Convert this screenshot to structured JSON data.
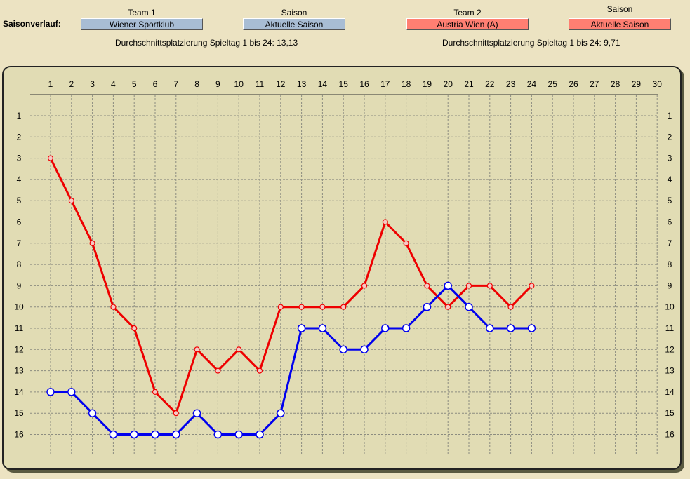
{
  "header": {
    "main_label": "Saisonverlauf:",
    "team1_label": "Team 1",
    "team1_value": "Wiener Sportklub",
    "season1_label": "Saison",
    "season1_value": "Aktuelle Saison",
    "team2_label": "Team 2",
    "team2_value": "Austria Wien (A)",
    "season2_label": "Saison",
    "season2_value": "Aktuelle Saison",
    "avg1": "Durchschnittsplatzierung Spieltag 1 bis 24: 13,13",
    "avg2": "Durchschnittsplatzierung Spieltag 1 bis 24:  9,71"
  },
  "colors": {
    "team1": "#0000EE",
    "team2": "#EE0000",
    "team1_button": "#A8BDD4",
    "team2_button": "#FF7F72"
  },
  "chart_data": {
    "type": "line",
    "title": "",
    "xlabel": "",
    "ylabel": "",
    "x_range": [
      1,
      30
    ],
    "y_range": [
      1,
      16
    ],
    "y_inverted": true,
    "grid": true,
    "x_ticks": [
      1,
      2,
      3,
      4,
      5,
      6,
      7,
      8,
      9,
      10,
      11,
      12,
      13,
      14,
      15,
      16,
      17,
      18,
      19,
      20,
      21,
      22,
      23,
      24,
      25,
      26,
      27,
      28,
      29,
      30
    ],
    "y_ticks": [
      1,
      2,
      3,
      4,
      5,
      6,
      7,
      8,
      9,
      10,
      11,
      12,
      13,
      14,
      15,
      16
    ],
    "series": [
      {
        "name": "Wiener Sportklub",
        "color": "#0000EE",
        "marker": "hollow-circle",
        "x": [
          1,
          2,
          3,
          4,
          5,
          6,
          7,
          8,
          9,
          10,
          11,
          12,
          13,
          14,
          15,
          16,
          17,
          18,
          19,
          20,
          21,
          22,
          23,
          24
        ],
        "values": [
          14,
          14,
          15,
          16,
          16,
          16,
          16,
          15,
          16,
          16,
          16,
          15,
          11,
          11,
          12,
          12,
          11,
          11,
          10,
          9,
          10,
          11,
          11,
          11
        ]
      },
      {
        "name": "Austria Wien (A)",
        "color": "#EE0000",
        "marker": "small-circle",
        "x": [
          1,
          2,
          3,
          4,
          5,
          6,
          7,
          8,
          9,
          10,
          11,
          12,
          13,
          14,
          15,
          16,
          17,
          18,
          19,
          20,
          21,
          22,
          23,
          24
        ],
        "values": [
          3,
          5,
          7,
          10,
          11,
          14,
          15,
          12,
          13,
          12,
          13,
          10,
          10,
          10,
          10,
          9,
          6,
          7,
          9,
          10,
          9,
          9,
          10,
          9
        ]
      }
    ]
  }
}
